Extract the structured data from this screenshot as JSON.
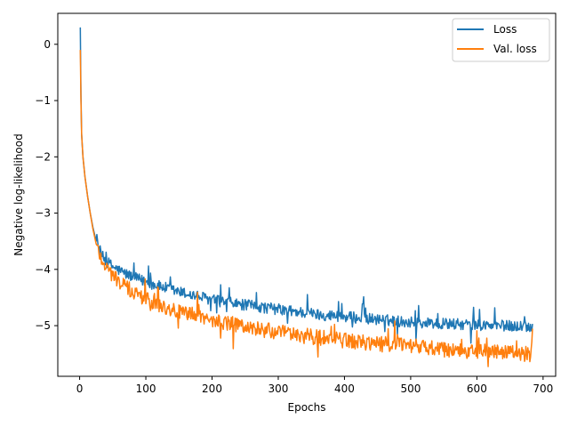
{
  "chart_data": {
    "type": "line",
    "xlabel": "Epochs",
    "ylabel": "Negative log-likelihood",
    "xlim": [
      -33,
      719
    ],
    "ylim": [
      -5.9,
      0.55
    ],
    "xticks": [
      0,
      100,
      200,
      300,
      400,
      500,
      600,
      700
    ],
    "yticks": [
      0,
      -1,
      -2,
      -3,
      -4,
      -5
    ],
    "tick_labels_x": [
      "0",
      "100",
      "200",
      "300",
      "400",
      "500",
      "600",
      "700"
    ],
    "tick_labels_y": [
      "0",
      "−1",
      "−2",
      "−3",
      "−4",
      "−5"
    ],
    "grid": false,
    "legend": {
      "placement": "top-right"
    },
    "series": [
      {
        "name": "Loss",
        "color": "#1f77b4",
        "x": [
          1,
          2,
          3,
          5,
          8,
          12,
          16,
          20,
          25,
          30,
          35,
          40,
          50,
          60,
          70,
          80,
          90,
          100,
          110,
          120,
          130,
          140,
          150,
          160,
          175,
          190,
          200,
          220,
          240,
          260,
          280,
          300,
          320,
          340,
          360,
          380,
          400,
          420,
          440,
          460,
          480,
          500,
          520,
          540,
          560,
          580,
          600,
          620,
          640,
          660,
          670,
          684
        ],
        "values": [
          0.3,
          -0.9,
          -1.6,
          -2.0,
          -2.35,
          -2.7,
          -3.0,
          -3.25,
          -3.5,
          -3.65,
          -3.78,
          -3.85,
          -3.95,
          -4.02,
          -4.08,
          -4.13,
          -4.18,
          -4.22,
          -4.26,
          -4.3,
          -4.33,
          -4.37,
          -4.4,
          -4.43,
          -4.47,
          -4.51,
          -4.54,
          -4.58,
          -4.62,
          -4.65,
          -4.68,
          -4.71,
          -4.74,
          -4.77,
          -4.8,
          -4.82,
          -4.84,
          -4.86,
          -4.88,
          -4.9,
          -4.92,
          -4.94,
          -4.95,
          -4.96,
          -4.97,
          -4.98,
          -4.99,
          -5.0,
          -5.0,
          -5.01,
          -5.01,
          -5.02
        ],
        "noise": 0.05
      },
      {
        "name": "Val. loss",
        "color": "#ff7f0e",
        "x": [
          1,
          2,
          3,
          5,
          8,
          12,
          16,
          20,
          25,
          30,
          35,
          40,
          50,
          60,
          70,
          80,
          90,
          100,
          110,
          120,
          130,
          140,
          150,
          160,
          175,
          190,
          200,
          220,
          240,
          260,
          280,
          300,
          320,
          340,
          360,
          380,
          400,
          420,
          440,
          460,
          480,
          500,
          520,
          540,
          560,
          580,
          600,
          620,
          640,
          660,
          670,
          684
        ],
        "values": [
          -0.1,
          -1.0,
          -1.6,
          -2.0,
          -2.35,
          -2.7,
          -3.0,
          -3.28,
          -3.55,
          -3.72,
          -3.85,
          -3.95,
          -4.1,
          -4.22,
          -4.32,
          -4.4,
          -4.47,
          -4.53,
          -4.58,
          -4.63,
          -4.67,
          -4.71,
          -4.75,
          -4.78,
          -4.83,
          -4.87,
          -4.9,
          -4.95,
          -5.0,
          -5.04,
          -5.08,
          -5.12,
          -5.15,
          -5.18,
          -5.21,
          -5.24,
          -5.26,
          -5.29,
          -5.31,
          -5.33,
          -5.35,
          -5.37,
          -5.39,
          -5.41,
          -5.43,
          -5.44,
          -5.46,
          -5.47,
          -5.48,
          -5.49,
          -5.5,
          -5.5
        ],
        "noise": 0.07
      }
    ]
  }
}
